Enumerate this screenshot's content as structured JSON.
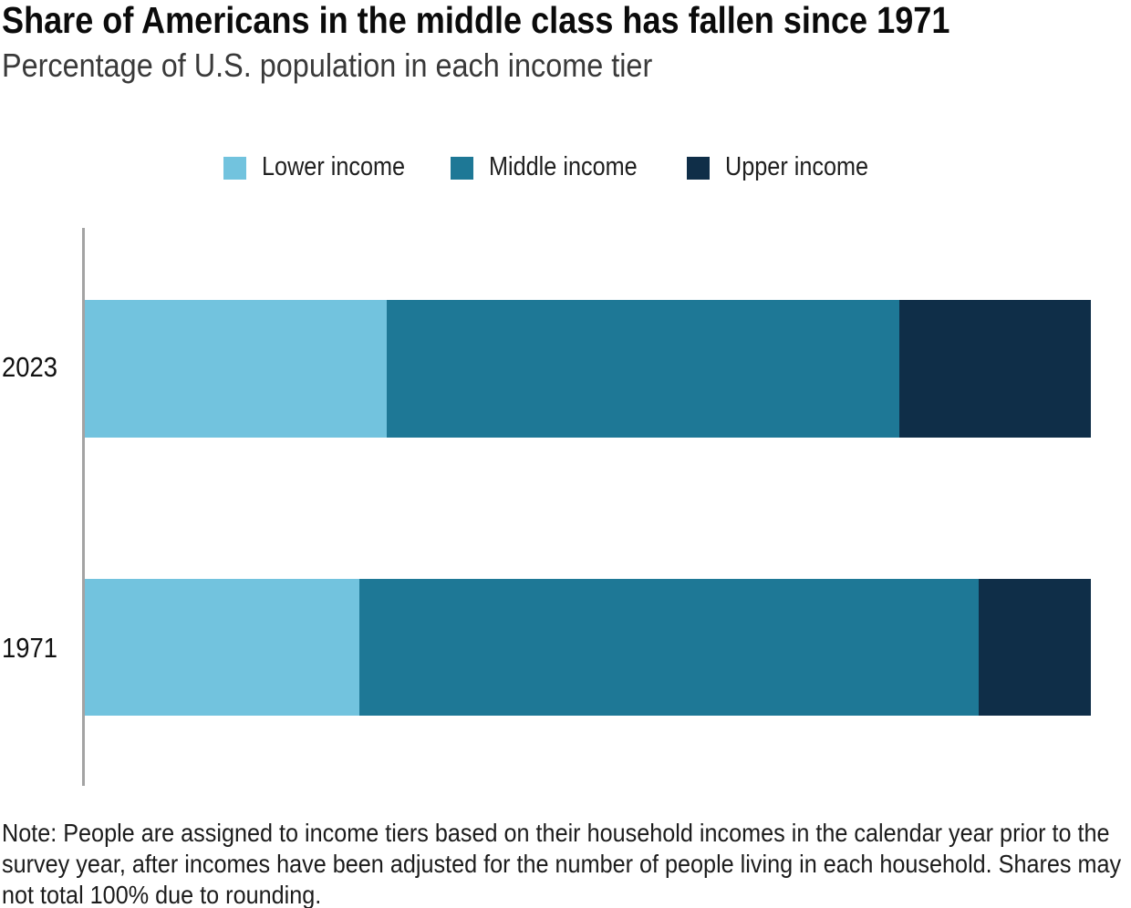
{
  "header": {
    "title": "Share of Americans in the middle class has fallen since 1971",
    "subtitle": "Percentage of U.S. population in each income tier"
  },
  "chart_data": {
    "type": "bar",
    "orientation": "horizontal_stacked",
    "categories": [
      "2023",
      "1971"
    ],
    "series": [
      {
        "name": "Lower income",
        "color": "#72C3DE",
        "values": [
          30,
          27
        ]
      },
      {
        "name": "Middle income",
        "color": "#1E7896",
        "values": [
          51,
          61
        ]
      },
      {
        "name": "Upper income",
        "color": "#0F2E48",
        "values": [
          19,
          11
        ]
      }
    ],
    "unit": "percent",
    "xlim": [
      0,
      100
    ],
    "legend_position": "top",
    "axis_color": "#A3A3A3",
    "grid": false
  },
  "note": "Note: People are assigned to income tiers based on their household incomes in the calendar year prior to the survey year, after incomes have been adjusted for the number of people living in each household. Shares may not total 100% due to rounding."
}
